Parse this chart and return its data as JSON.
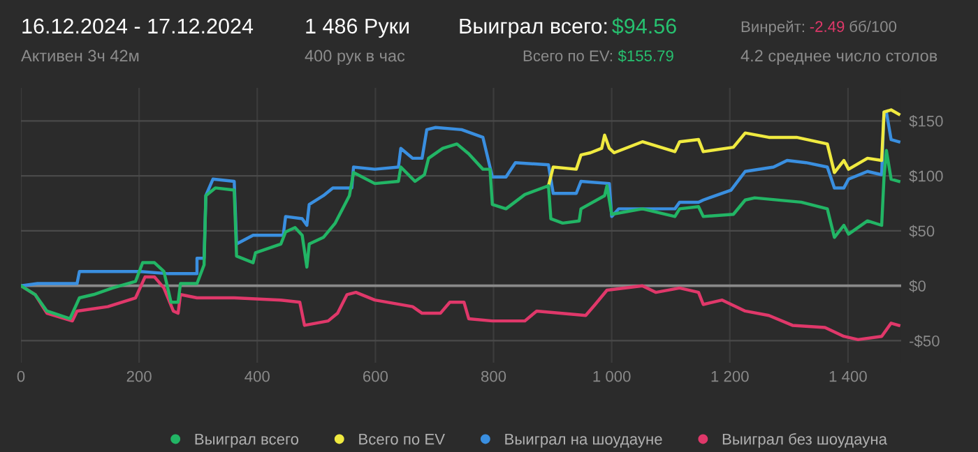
{
  "chart_data": {
    "type": "line",
    "title": "16.12.2024 - 17.12.2024",
    "subtitle": "Активен 3ч 42м",
    "annotations": [
      "1 486 Руки",
      "400 рук в час",
      "Выиграл всего:",
      "$94.56",
      "Всего по EV:",
      "$155.79",
      "Винрейт:",
      "-2.49",
      "бб/100",
      "4.2 среднее число столов"
    ],
    "series": [
      {
        "name": "Выиграл всего",
        "color": "#22b565",
        "x": [
          0,
          24,
          44,
          83,
          99,
          123,
          155,
          194,
          206,
          226,
          242,
          254,
          266,
          270,
          298,
          310,
          313,
          329,
          361,
          365,
          393,
          397,
          440,
          448,
          464,
          476,
          484,
          488,
          512,
          532,
          556,
          563,
          599,
          639,
          643,
          667,
          683,
          690,
          714,
          738,
          758,
          782,
          794,
          798,
          821,
          853,
          893,
          897,
          917,
          945,
          948,
          988,
          992,
          1000,
          1052,
          1107,
          1115,
          1147,
          1155,
          1206,
          1226,
          1242,
          1321,
          1365,
          1377,
          1393,
          1401,
          1433,
          1457,
          1461,
          1465,
          1473,
          1486
        ],
        "values": [
          0,
          -8,
          -23,
          -30,
          -11,
          -8,
          -2,
          4,
          21,
          21,
          13,
          -15,
          -15,
          2,
          2,
          19,
          82,
          89,
          87,
          27,
          21,
          30,
          38,
          49,
          53,
          46,
          17,
          38,
          44,
          57,
          82,
          103,
          93,
          95,
          108,
          95,
          101,
          116,
          125,
          129,
          120,
          106,
          106,
          74,
          70,
          83,
          91,
          61,
          57,
          59,
          70,
          82,
          91,
          65,
          70,
          63,
          70,
          72,
          63,
          65,
          78,
          80,
          76,
          70,
          44,
          55,
          47,
          59,
          55,
          99,
          123,
          97,
          95
        ]
      },
      {
        "name": "Всего по EV",
        "color": "#f0ea40",
        "x": [
          893,
          901,
          940,
          948,
          964,
          983,
          988,
          996,
          1004,
          1052,
          1107,
          1115,
          1147,
          1155,
          1206,
          1226,
          1266,
          1313,
          1365,
          1377,
          1393,
          1401,
          1433,
          1457,
          1461,
          1473,
          1486
        ],
        "values": [
          91,
          108,
          106,
          119,
          121,
          125,
          137,
          125,
          121,
          131,
          122,
          131,
          133,
          122,
          126,
          139,
          135,
          135,
          129,
          103,
          114,
          106,
          116,
          114,
          158,
          160,
          156
        ]
      },
      {
        "name": "Выиграл на шоудауне",
        "color": "#3a8fe0",
        "x": [
          0,
          28,
          95,
          99,
          202,
          250,
          298,
          298,
          310,
          313,
          325,
          361,
          365,
          393,
          444,
          448,
          476,
          484,
          488,
          512,
          528,
          560,
          563,
          599,
          639,
          643,
          663,
          679,
          687,
          702,
          746,
          782,
          798,
          821,
          837,
          893,
          901,
          940,
          948,
          996,
          1000,
          1012,
          1107,
          1115,
          1147,
          1155,
          1202,
          1226,
          1274,
          1297,
          1329,
          1365,
          1377,
          1393,
          1401,
          1433,
          1457,
          1461,
          1465,
          1473,
          1486
        ],
        "values": [
          0,
          2,
          2,
          13,
          13,
          11,
          11,
          25,
          25,
          82,
          97,
          95,
          38,
          46,
          46,
          63,
          61,
          55,
          74,
          82,
          89,
          89,
          108,
          106,
          108,
          125,
          116,
          116,
          142,
          144,
          142,
          135,
          99,
          99,
          112,
          110,
          84,
          84,
          95,
          93,
          63,
          70,
          70,
          76,
          76,
          78,
          87,
          104,
          108,
          114,
          112,
          108,
          89,
          89,
          97,
          104,
          101,
          158,
          158,
          133,
          131
        ]
      },
      {
        "name": "Выиграл без шоудауна",
        "color": "#e0386a",
        "x": [
          0,
          24,
          44,
          87,
          95,
          147,
          194,
          210,
          226,
          242,
          258,
          266,
          270,
          298,
          361,
          440,
          472,
          480,
          520,
          536,
          552,
          567,
          599,
          663,
          679,
          710,
          726,
          750,
          758,
          798,
          853,
          873,
          956,
          972,
          992,
          1052,
          1075,
          1115,
          1147,
          1155,
          1187,
          1226,
          1266,
          1306,
          1361,
          1393,
          1417,
          1457,
          1473,
          1486
        ],
        "values": [
          0,
          -8,
          -25,
          -32,
          -23,
          -19,
          -11,
          8,
          8,
          -2,
          -23,
          -25,
          -8,
          -11,
          -11,
          -13,
          -15,
          -36,
          -32,
          -25,
          -8,
          -6,
          -13,
          -19,
          -25,
          -25,
          -15,
          -15,
          -30,
          -32,
          -32,
          -23,
          -27,
          -17,
          -4,
          0,
          -6,
          -2,
          -6,
          -17,
          -13,
          -23,
          -27,
          -36,
          -38,
          -46,
          -49,
          -46,
          -34,
          -36
        ]
      }
    ],
    "xlim": [
      0,
      1490
    ],
    "xticks": [
      0,
      200,
      400,
      600,
      800,
      {
        "value": 1000,
        "label": "1 000"
      },
      {
        "value": 1200,
        "label": "1 200"
      },
      {
        "value": 1400,
        "label": "1 400"
      }
    ],
    "ylim": [
      -70,
      180
    ],
    "yticks": [
      {
        "value": -50,
        "label": "-$50"
      },
      {
        "value": 0,
        "label": "$0"
      },
      {
        "value": 50,
        "label": "$50"
      },
      {
        "value": 100,
        "label": "$100"
      },
      {
        "value": 150,
        "label": "$150"
      }
    ],
    "ref_lines": [
      {
        "axis": "y",
        "value": 0,
        "color": "#8a8a8a"
      }
    ],
    "grid": true,
    "legend": "bottom",
    "marker": "none",
    "line_style": "solid"
  }
}
